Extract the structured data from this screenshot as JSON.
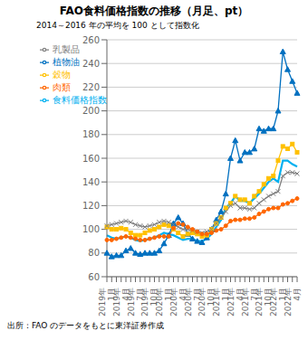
{
  "chart_data": {
    "type": "line",
    "title": "FAO食料価格指数の推移（月足、pt）",
    "subtitle": "2014～2016 年の平均を 100 として指数化",
    "annotations": [
      "出所：FAO のデータをもとに東洋証券作成"
    ],
    "categories": [
      "2019年\n1月",
      null,
      null,
      "2019年\n4月",
      null,
      null,
      "2019年\n7月",
      null,
      null,
      "2019年\n10月",
      null,
      null,
      "2020年\n1月",
      null,
      null,
      "2020年\n4月",
      null,
      null,
      "2020年\n7月",
      null,
      null,
      "2020年\n10月",
      null,
      null,
      "2021年\n1月",
      null,
      null,
      "2021年\n4月",
      null,
      null,
      "2021年\n7月",
      null,
      null,
      "2021年\n10月",
      null,
      null,
      "2022年\n1月",
      null,
      null,
      "2022年\n4月",
      null
    ],
    "series": [
      {
        "name": "植物油",
        "color": "#0070C0",
        "marker": "triangle",
        "values": [
          80,
          77,
          78,
          78,
          82,
          84,
          80,
          79,
          80,
          80,
          80,
          82,
          88,
          95,
          105,
          110,
          105,
          96,
          92,
          90,
          89,
          93,
          100,
          108,
          115,
          130,
          160,
          175,
          158,
          165,
          165,
          168,
          185,
          183,
          185,
          185,
          200,
          250,
          235,
          225,
          215
        ]
      },
      {
        "name": "穀物",
        "color": "#FFC000",
        "marker": "square",
        "values": [
          102,
          100,
          100,
          101,
          100,
          97,
          95,
          95,
          97,
          99,
          100,
          102,
          104,
          103,
          100,
          97,
          94,
          96,
          97,
          96,
          94,
          95,
          100,
          105,
          110,
          118,
          122,
          128,
          125,
          125,
          122,
          128,
          132,
          138,
          143,
          145,
          158,
          170,
          168,
          172,
          165
        ]
      },
      {
        "name": "食料価格指数",
        "color": "#00B0F0",
        "values": [
          95,
          93,
          92,
          93,
          94,
          93,
          91,
          90,
          91,
          92,
          93,
          95,
          97,
          96,
          95,
          93,
          91,
          92,
          92,
          90,
          90,
          92,
          96,
          102,
          108,
          118,
          122,
          128,
          124,
          124,
          122,
          126,
          130,
          135,
          140,
          143,
          140,
          158,
          158,
          155,
          153
        ]
      },
      {
        "name": "乳製品",
        "color": "#808080",
        "marker": "cross",
        "values": [
          103,
          104,
          105,
          106,
          107,
          106,
          104,
          103,
          102,
          103,
          104,
          106,
          107,
          106,
          104,
          102,
          100,
          100,
          99,
          98,
          97,
          98,
          100,
          105,
          110,
          115,
          120,
          122,
          118,
          118,
          117,
          118,
          122,
          125,
          128,
          130,
          132,
          145,
          148,
          148,
          147
        ]
      },
      {
        "name": "肉類",
        "color": "#FF6600",
        "marker": "circle",
        "values": [
          91,
          91,
          92,
          93,
          94,
          93,
          92,
          91,
          91,
          92,
          93,
          94,
          94,
          94,
          101,
          105,
          104,
          102,
          100,
          98,
          96,
          96,
          97,
          99,
          100,
          103,
          107,
          108,
          108,
          109,
          109,
          110,
          113,
          115,
          117,
          118,
          118,
          121,
          122,
          124,
          126
        ]
      }
    ],
    "ylim": [
      60,
      260
    ],
    "yticks": [
      60,
      80,
      100,
      120,
      140,
      160,
      180,
      200,
      220,
      240,
      260
    ],
    "grid": true,
    "legend": "upper left"
  }
}
